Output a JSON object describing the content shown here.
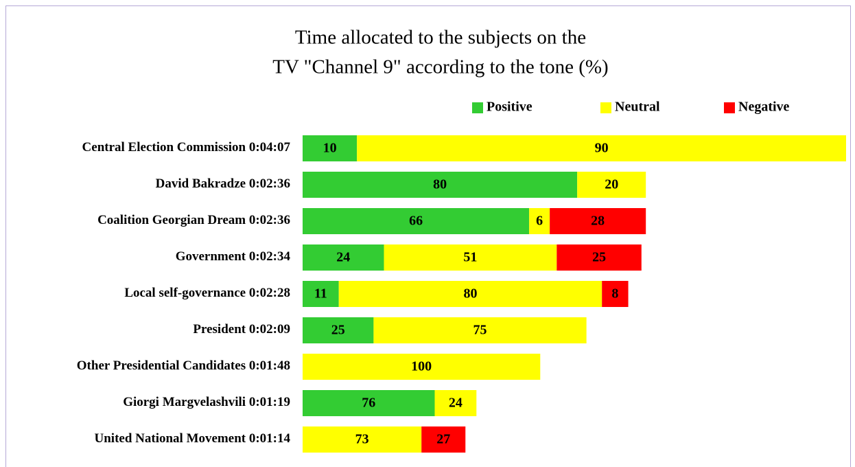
{
  "chart_data": {
    "type": "bar",
    "orientation": "horizontal",
    "stacked": true,
    "title": [
      "Time allocated to the subjects on the",
      "TV \"Channel 9\" according to the tone (%)"
    ],
    "categories": [
      "Central Election Commission",
      "David Bakradze",
      "Coalition Georgian Dream",
      "Government",
      "Local self-governance",
      "President",
      "Other Presidential Candidates",
      "Giorgi Margvelashvili",
      "United National Movement"
    ],
    "durations": [
      "0:04:07",
      "0:02:36",
      "0:02:36",
      "0:02:34",
      "0:02:28",
      "0:02:09",
      "0:01:48",
      "0:01:19",
      "0:01:14"
    ],
    "series": [
      {
        "name": "Positive",
        "color": "#33cc33",
        "values": [
          10,
          80,
          66,
          24,
          11,
          25,
          null,
          76,
          null
        ]
      },
      {
        "name": "Neutral",
        "color": "#ffff00",
        "values": [
          90,
          20,
          6,
          51,
          80,
          75,
          100,
          24,
          73
        ]
      },
      {
        "name": "Negative",
        "color": "#ff0000",
        "values": [
          null,
          null,
          28,
          25,
          8,
          null,
          null,
          null,
          27
        ]
      }
    ],
    "legend": "top-right"
  }
}
